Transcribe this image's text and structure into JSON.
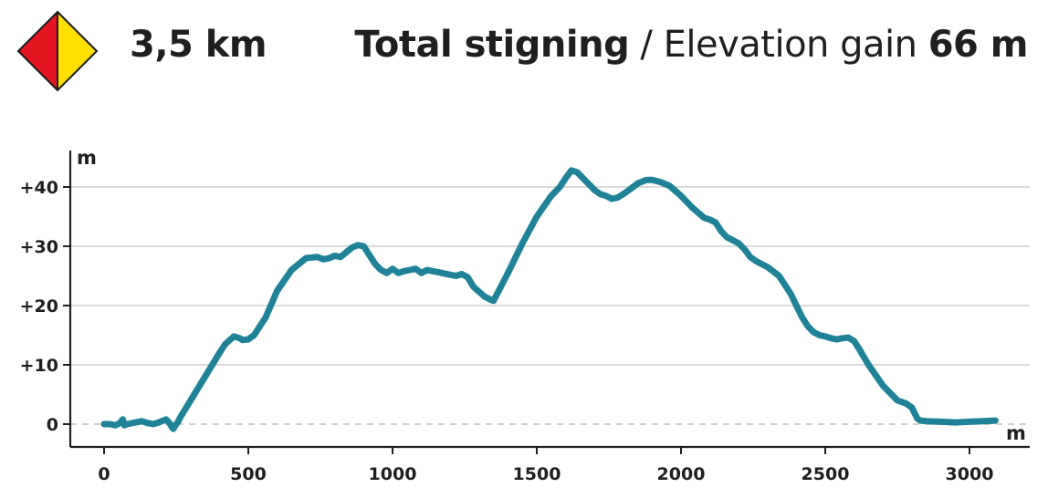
{
  "header": {
    "distance": "3,5 km",
    "gain_label_no": "Total stigning",
    "gain_separator": " / ",
    "gain_label_en": "Elevation gain",
    "gain_value": "66 m",
    "marker_colors": {
      "left": "#e3151e",
      "right": "#ffe100",
      "border": "#1a1a1a"
    }
  },
  "chart_data": {
    "type": "line",
    "xlabel": "m",
    "ylabel": "m",
    "xlim": [
      0,
      3100
    ],
    "ylim": [
      -4,
      46
    ],
    "x_ticks": [
      0,
      500,
      1000,
      1500,
      2000,
      2500,
      3000
    ],
    "x_tick_labels": [
      "0",
      "500",
      "1000",
      "1500",
      "2000",
      "2500",
      "3000"
    ],
    "y_ticks": [
      0,
      10,
      20,
      30,
      40
    ],
    "y_tick_labels": [
      "0",
      "+10",
      "+20",
      "+30",
      "+40"
    ],
    "grid": true,
    "line_color": "#1f8299",
    "series": [
      {
        "x": [
          0,
          20,
          40,
          55,
          65,
          70,
          80,
          100,
          130,
          150,
          170,
          190,
          200,
          215,
          225,
          235,
          240,
          250,
          255,
          265,
          300,
          350,
          400,
          420,
          450,
          470,
          480,
          500,
          520,
          540,
          560,
          600,
          650,
          700,
          740,
          760,
          780,
          800,
          820,
          840,
          860,
          880,
          900,
          920,
          940,
          960,
          980,
          1000,
          1020,
          1040,
          1060,
          1080,
          1100,
          1120,
          1140,
          1160,
          1180,
          1200,
          1220,
          1240,
          1260,
          1280,
          1300,
          1320,
          1340,
          1350,
          1400,
          1450,
          1500,
          1550,
          1580,
          1600,
          1620,
          1640,
          1660,
          1680,
          1700,
          1720,
          1740,
          1760,
          1780,
          1800,
          1820,
          1850,
          1880,
          1900,
          1930,
          1960,
          2000,
          2040,
          2080,
          2100,
          2120,
          2140,
          2160,
          2180,
          2200,
          2220,
          2240,
          2260,
          2300,
          2340,
          2380,
          2420,
          2440,
          2460,
          2480,
          2500,
          2520,
          2540,
          2560,
          2580,
          2600,
          2620,
          2650,
          2700,
          2750,
          2780,
          2800,
          2810,
          2820,
          2830,
          2850,
          2900,
          2950,
          3000,
          3050,
          3090
        ],
        "values": [
          0,
          0,
          -0.2,
          0.2,
          0.8,
          -0.2,
          0,
          0.2,
          0.5,
          0.2,
          0,
          0.3,
          0.5,
          0.8,
          0.3,
          -0.5,
          -0.8,
          0,
          0.3,
          1.2,
          4,
          8,
          12,
          13.5,
          14.8,
          14.5,
          14.2,
          14.3,
          15,
          16.5,
          18,
          22.5,
          26,
          28,
          28.2,
          27.8,
          28,
          28.4,
          28.2,
          29,
          29.8,
          30.2,
          30,
          28.5,
          27,
          26,
          25.5,
          26.2,
          25.5,
          25.8,
          26,
          26.2,
          25.5,
          26,
          25.8,
          25.6,
          25.4,
          25.2,
          25,
          25.3,
          24.8,
          23.2,
          22.3,
          21.5,
          21,
          20.8,
          25.5,
          30.5,
          35,
          38.5,
          40,
          41.5,
          42.8,
          42.5,
          41.5,
          40.5,
          39.5,
          38.8,
          38.5,
          38,
          38.2,
          38.8,
          39.5,
          40.6,
          41.2,
          41.2,
          40.8,
          40.2,
          38.5,
          36.5,
          34.8,
          34.5,
          34,
          32.5,
          31.5,
          31,
          30.5,
          29.5,
          28.2,
          27.5,
          26.5,
          25,
          22,
          18,
          16.5,
          15.5,
          15,
          14.8,
          14.5,
          14.3,
          14.5,
          14.6,
          14,
          12.5,
          10,
          6.5,
          4,
          3.5,
          2.8,
          1.8,
          0.9,
          0.6,
          0.5,
          0.4,
          0.3,
          0.4,
          0.5,
          0.6
        ]
      }
    ]
  }
}
